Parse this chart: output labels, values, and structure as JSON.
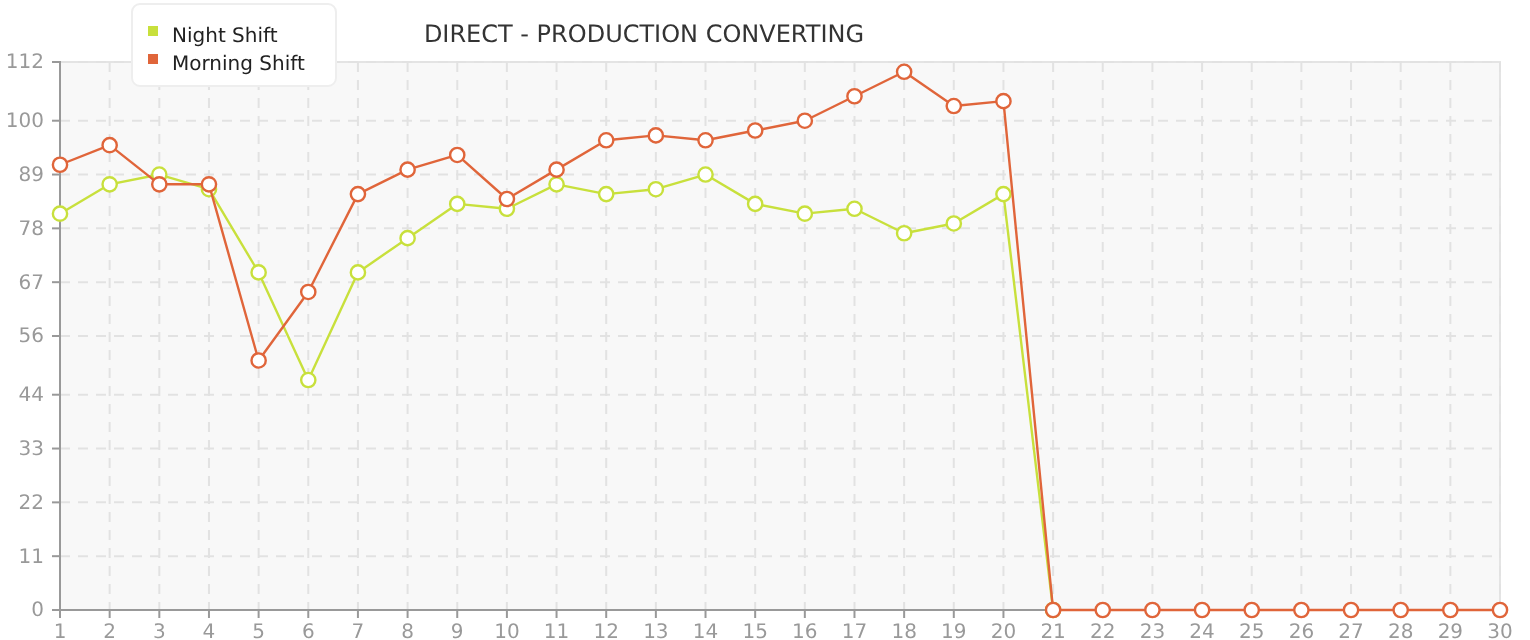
{
  "chart_data": {
    "type": "line",
    "title": "DIRECT - PRODUCTION CONVERTING",
    "x": [
      1,
      2,
      3,
      4,
      5,
      6,
      7,
      8,
      9,
      10,
      11,
      12,
      13,
      14,
      15,
      16,
      17,
      18,
      19,
      20,
      21,
      22,
      23,
      24,
      25,
      26,
      27,
      28,
      29,
      30
    ],
    "series": [
      {
        "name": "Night Shift",
        "color": "#c8e03c",
        "values": [
          81,
          87,
          89,
          86,
          69,
          47,
          69,
          76,
          83,
          82,
          87,
          85,
          86,
          89,
          83,
          81,
          82,
          77,
          79,
          85,
          0,
          null,
          null,
          null,
          null,
          null,
          null,
          null,
          null,
          null
        ]
      },
      {
        "name": "Morning Shift",
        "color": "#e0653a",
        "values": [
          91,
          95,
          87,
          87,
          51,
          65,
          85,
          90,
          93,
          84,
          90,
          96,
          97,
          96,
          98,
          100,
          105,
          110,
          103,
          104,
          0,
          0,
          0,
          0,
          0,
          0,
          0,
          0,
          0,
          0
        ]
      }
    ],
    "xlim": [
      1,
      30
    ],
    "xticks": [
      1,
      2,
      3,
      4,
      5,
      6,
      7,
      8,
      9,
      10,
      11,
      12,
      13,
      14,
      15,
      16,
      17,
      18,
      19,
      20,
      21,
      22,
      23,
      24,
      25,
      26,
      27,
      28,
      29,
      30
    ],
    "ylim": [
      0,
      112
    ],
    "yticks": [
      0,
      11,
      22,
      33,
      44,
      56,
      67,
      78,
      89,
      100,
      112
    ],
    "grid": true,
    "legend": "top left",
    "marker": "circle",
    "line_style": "solid"
  }
}
